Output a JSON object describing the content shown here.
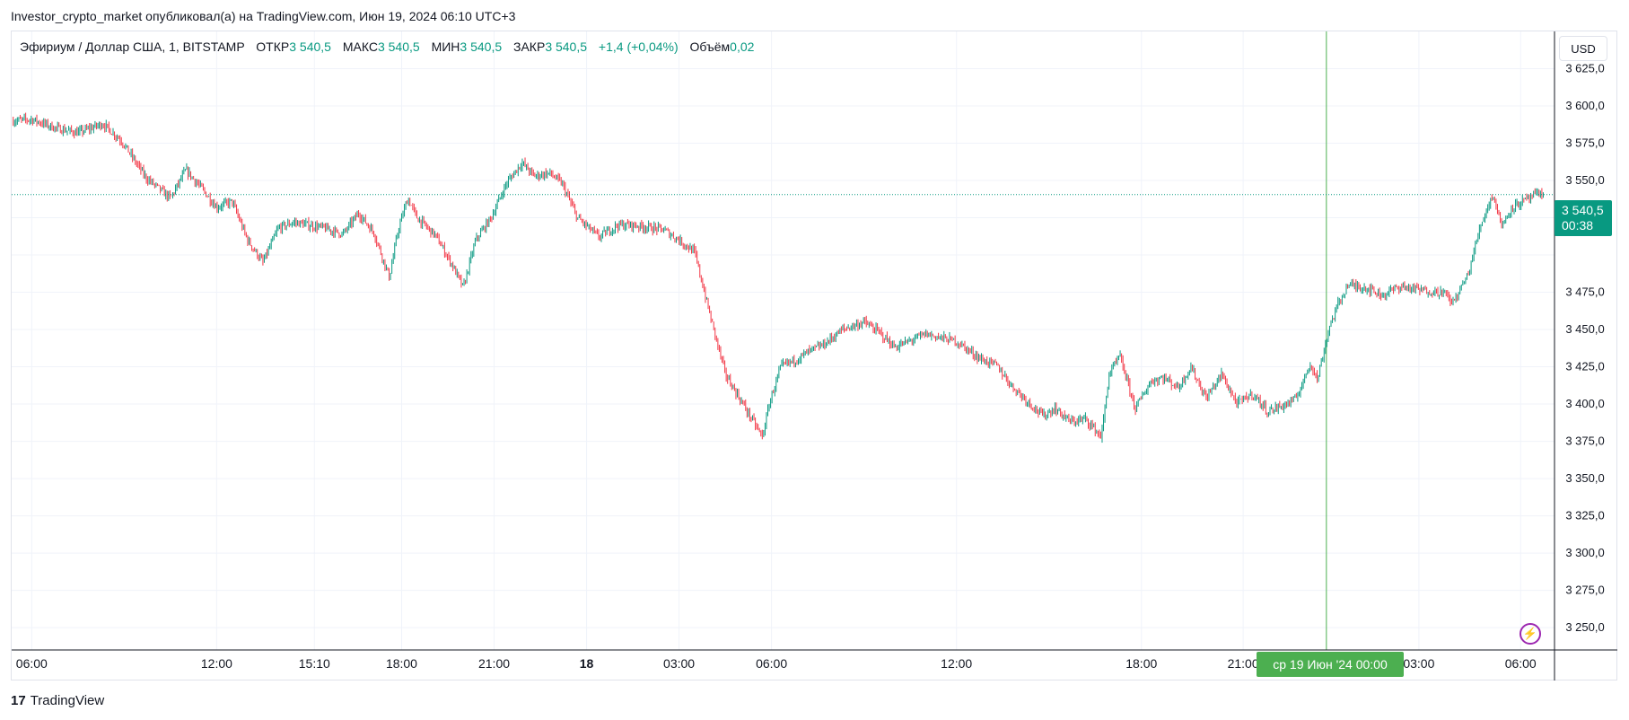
{
  "publisher_line": "Investor_crypto_market опубликовал(а) на TradingView.com, Июн 19, 2024 06:10 UTC+3",
  "legend": {
    "symbol": "Эфириум / Доллар США, 1, BITSTAMP",
    "open_label": "ОТКР",
    "open": "3 540,5",
    "high_label": "МАКС",
    "high": "3 540,5",
    "low_label": "МИН",
    "low": "3 540,5",
    "close_label": "ЗАКР",
    "close": "3 540,5",
    "change": "+1,4 (+0,04%)",
    "volume_label": "Объём",
    "volume": "0,02"
  },
  "currency": "USD",
  "last_price": {
    "price": "3 540,5",
    "countdown": "00:38"
  },
  "crosshair_time_label": "ср 19 Июн '24   00:00",
  "brand": {
    "logo": "17",
    "name": "TradingView"
  },
  "colors": {
    "up": "#089981",
    "down": "#f23645",
    "crosshair": "#4caf50",
    "grid": "#f0f3fa"
  },
  "icons": {
    "bolt": "lightning-bolt-icon",
    "logo": "tradingview-logo-icon"
  },
  "chart_data": {
    "type": "line",
    "style": "candlestick",
    "interval_minutes": 1,
    "ylim": [
      3235,
      3650
    ],
    "y_ticks": [
      3250,
      3275,
      3300,
      3325,
      3350,
      3375,
      3400,
      3425,
      3450,
      3475,
      3500,
      3525,
      3550,
      3575,
      3600,
      3625
    ],
    "y_tick_labels": [
      "3 250,0",
      "3 275,0",
      "3 300,0",
      "3 325,0",
      "3 350,0",
      "3 375,0",
      "3 400,0",
      "3 425,0",
      "3 450,0",
      "3 475,0",
      "",
      "",
      "3 550,0",
      "3 575,0",
      "3 600,0",
      "3 625,0"
    ],
    "x_ticks": [
      {
        "hour": 6,
        "label": "06:00"
      },
      {
        "hour": 12,
        "label": "12:00"
      },
      {
        "hour": 15.17,
        "label": "15:10"
      },
      {
        "hour": 18,
        "label": "18:00"
      },
      {
        "hour": 21,
        "label": "21:00"
      },
      {
        "hour": 24,
        "label": "18",
        "bold": true
      },
      {
        "hour": 27,
        "label": "03:00"
      },
      {
        "hour": 30,
        "label": "06:00"
      },
      {
        "hour": 36,
        "label": "12:00"
      },
      {
        "hour": 42,
        "label": "18:00"
      },
      {
        "hour": 45.3,
        "label": "21:00"
      },
      {
        "hour": 51,
        "label": "03:00"
      },
      {
        "hour": 54.3,
        "label": "06:00"
      }
    ],
    "xlim": [
      5.35,
      55.4
    ],
    "crosshair_hour": 48,
    "last_price_value": 3540.5,
    "series": [
      {
        "points": [
          [
            5.4,
            3590
          ],
          [
            6,
            3591
          ],
          [
            6.8,
            3585
          ],
          [
            7.5,
            3582
          ],
          [
            8.3,
            3588
          ],
          [
            8.9,
            3577
          ],
          [
            9.7,
            3552
          ],
          [
            10.5,
            3538
          ],
          [
            11,
            3557
          ],
          [
            11.5,
            3545
          ],
          [
            12,
            3532
          ],
          [
            12.5,
            3536
          ],
          [
            13,
            3510
          ],
          [
            13.5,
            3495
          ],
          [
            14,
            3518
          ],
          [
            14.5,
            3522
          ],
          [
            15,
            3520
          ],
          [
            15.5,
            3518
          ],
          [
            16.1,
            3514
          ],
          [
            16.6,
            3528
          ],
          [
            17.1,
            3515
          ],
          [
            17.6,
            3485
          ],
          [
            17.9,
            3518
          ],
          [
            18.2,
            3538
          ],
          [
            18.5,
            3525
          ],
          [
            19.1,
            3513
          ],
          [
            19.6,
            3495
          ],
          [
            20,
            3478
          ],
          [
            20.4,
            3510
          ],
          [
            20.9,
            3525
          ],
          [
            21.4,
            3548
          ],
          [
            21.9,
            3562
          ],
          [
            22.3,
            3553
          ],
          [
            22.8,
            3555
          ],
          [
            23.2,
            3548
          ],
          [
            23.7,
            3525
          ],
          [
            24.4,
            3512
          ],
          [
            25,
            3520
          ],
          [
            25.5,
            3520
          ],
          [
            26.5,
            3517
          ],
          [
            27,
            3510
          ],
          [
            27.5,
            3502
          ],
          [
            28,
            3460
          ],
          [
            28.5,
            3420
          ],
          [
            29.7,
            3378
          ],
          [
            29.95,
            3402
          ],
          [
            30.3,
            3425
          ],
          [
            30.8,
            3430
          ],
          [
            31.2,
            3435
          ],
          [
            31.7,
            3440
          ],
          [
            32.3,
            3450
          ],
          [
            33,
            3455
          ],
          [
            33.5,
            3448
          ],
          [
            34,
            3438
          ],
          [
            35,
            3447
          ],
          [
            36,
            3442
          ],
          [
            36.8,
            3430
          ],
          [
            37.3,
            3426
          ],
          [
            37.8,
            3412
          ],
          [
            38.4,
            3400
          ],
          [
            38.8,
            3392
          ],
          [
            39.2,
            3397
          ],
          [
            39.7,
            3388
          ],
          [
            40.2,
            3390
          ],
          [
            40.7,
            3378
          ],
          [
            40.95,
            3420
          ],
          [
            41.3,
            3432
          ],
          [
            41.8,
            3397
          ],
          [
            42.3,
            3415
          ],
          [
            42.7,
            3418
          ],
          [
            43.2,
            3411
          ],
          [
            43.6,
            3425
          ],
          [
            44.1,
            3404
          ],
          [
            44.6,
            3420
          ],
          [
            45.1,
            3400
          ],
          [
            45.6,
            3407
          ],
          [
            46.1,
            3395
          ],
          [
            46.6,
            3399
          ],
          [
            47,
            3403
          ],
          [
            47.5,
            3428
          ],
          [
            47.7,
            3416
          ],
          [
            48.1,
            3452
          ],
          [
            48.4,
            3468
          ],
          [
            48.7,
            3480
          ],
          [
            49.3,
            3478
          ],
          [
            49.8,
            3473
          ],
          [
            50.4,
            3479
          ],
          [
            51.2,
            3476
          ],
          [
            51.8,
            3475
          ],
          [
            52.1,
            3468
          ],
          [
            52.6,
            3487
          ],
          [
            53,
            3520
          ],
          [
            53.4,
            3541
          ],
          [
            53.7,
            3519
          ],
          [
            54,
            3532
          ],
          [
            54.4,
            3536
          ],
          [
            54.8,
            3540.5
          ],
          [
            55.05,
            3540.5
          ]
        ]
      }
    ]
  }
}
